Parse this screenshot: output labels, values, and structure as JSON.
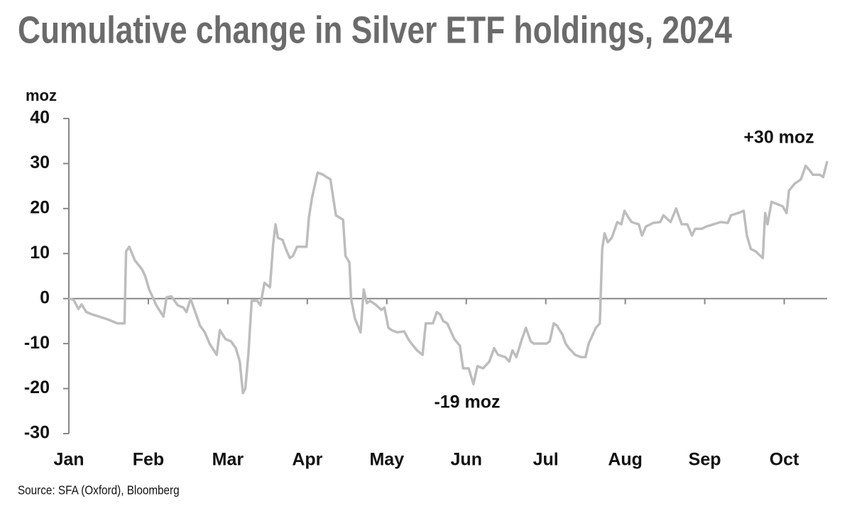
{
  "chart_data": {
    "type": "line",
    "title": "Cumulative change in Silver ETF holdings, 2024",
    "y_label": "moz",
    "source": "Source: SFA (Oxford), Bloomberg",
    "annotations": [
      "+30 moz",
      "-19 moz"
    ],
    "xlim": [
      0,
      9.54
    ],
    "xticks": [
      {
        "value": 0,
        "label": "Jan"
      },
      {
        "value": 1,
        "label": "Feb"
      },
      {
        "value": 2,
        "label": "Mar"
      },
      {
        "value": 3,
        "label": "Apr"
      },
      {
        "value": 4,
        "label": "May"
      },
      {
        "value": 5,
        "label": "Jun"
      },
      {
        "value": 6,
        "label": "Jul"
      },
      {
        "value": 7,
        "label": "Aug"
      },
      {
        "value": 8,
        "label": "Sep"
      },
      {
        "value": 9,
        "label": "Oct"
      }
    ],
    "ylim": [
      -30,
      40
    ],
    "yticks": [
      -30,
      -20,
      -10,
      0,
      10,
      20,
      30,
      40
    ],
    "x": [
      0,
      0.06,
      0.12,
      0.16,
      0.22,
      0.29,
      0.38,
      0.47,
      0.54,
      0.61,
      0.7,
      0.72,
      0.76,
      0.83,
      0.92,
      0.96,
      1.01,
      1.05,
      1.1,
      1.19,
      1.23,
      1.29,
      1.37,
      1.44,
      1.48,
      1.53,
      1.59,
      1.65,
      1.71,
      1.77,
      1.86,
      1.9,
      1.97,
      2.04,
      2.1,
      2.15,
      2.19,
      2.22,
      2.26,
      2.3,
      2.37,
      2.41,
      2.46,
      2.53,
      2.57,
      2.6,
      2.63,
      2.69,
      2.73,
      2.78,
      2.82,
      2.87,
      2.93,
      2.99,
      3.02,
      3.06,
      3.13,
      3.2,
      3.24,
      3.29,
      3.36,
      3.45,
      3.48,
      3.53,
      3.55,
      3.6,
      3.67,
      3.71,
      3.75,
      3.79,
      3.87,
      3.93,
      3.97,
      4.02,
      4.06,
      4.13,
      4.22,
      4.27,
      4.31,
      4.38,
      4.45,
      4.49,
      4.58,
      4.63,
      4.67,
      4.71,
      4.76,
      4.85,
      4.92,
      4.96,
      5.03,
      5.09,
      5.14,
      5.21,
      5.29,
      5.35,
      5.4,
      5.49,
      5.54,
      5.58,
      5.63,
      5.7,
      5.75,
      5.81,
      5.85,
      5.92,
      6.01,
      6.05,
      6.1,
      6.14,
      6.21,
      6.25,
      6.29,
      6.37,
      6.44,
      6.5,
      6.54,
      6.63,
      6.68,
      6.71,
      6.74,
      6.78,
      6.83,
      6.9,
      6.95,
      6.99,
      7.04,
      7.08,
      7.17,
      7.21,
      7.26,
      7.35,
      7.44,
      7.48,
      7.57,
      7.64,
      7.71,
      7.78,
      7.84,
      7.88,
      7.96,
      8.02,
      8.11,
      8.2,
      8.29,
      8.33,
      8.42,
      8.49,
      8.53,
      8.58,
      8.64,
      8.73,
      8.76,
      8.79,
      8.84,
      8.91,
      8.98,
      9.03,
      9.06,
      9.13,
      9.21,
      9.27,
      9.32,
      9.36,
      9.45,
      9.49,
      9.54
    ],
    "series": [
      {
        "name": "Silver ETF holdings",
        "color": "#bdbdbd",
        "values": [
          0,
          -0.3,
          -2.3,
          -1.3,
          -3,
          -3.5,
          -4,
          -4.5,
          -5,
          -5.5,
          -5.5,
          10.5,
          11.5,
          8.5,
          6.5,
          5,
          2,
          0.5,
          -1.5,
          -4,
          0.3,
          0.5,
          -1.5,
          -2,
          -3,
          0,
          -3,
          -6,
          -7.5,
          -10,
          -12.5,
          -7,
          -9,
          -9.5,
          -11,
          -14,
          -21,
          -20,
          -12,
          -0.5,
          -0.5,
          -1.5,
          3.5,
          2.5,
          12,
          16.5,
          13.5,
          13,
          11,
          9,
          9.5,
          11.5,
          11.5,
          11.5,
          18,
          22.5,
          28,
          27.5,
          27,
          26.5,
          18.5,
          17.5,
          9.5,
          8,
          0,
          -4.5,
          -7.5,
          2,
          -1,
          -0.5,
          -1.5,
          -2.5,
          -2,
          -6.5,
          -7,
          -7.5,
          -7.3,
          -9,
          -10,
          -11.5,
          -12.5,
          -5.5,
          -5.5,
          -3,
          -3.5,
          -5,
          -5.5,
          -9,
          -10.5,
          -15.5,
          -15.5,
          -19,
          -15,
          -15.5,
          -14,
          -11,
          -12.5,
          -13,
          -14,
          -11.5,
          -13,
          -9,
          -6.5,
          -9.5,
          -10,
          -10,
          -10,
          -9.5,
          -5.5,
          -6,
          -8,
          -10,
          -11,
          -12.5,
          -13,
          -13,
          -10,
          -6.5,
          -5.5,
          11,
          14.5,
          12.5,
          13.5,
          17,
          16.5,
          19.5,
          18,
          17,
          16.5,
          14,
          16,
          16.8,
          17,
          18.5,
          17,
          20,
          16.5,
          16.5,
          14,
          15.5,
          15.5,
          16,
          16.5,
          17,
          16.8,
          18.5,
          19,
          19.5,
          14,
          11,
          10.5,
          9,
          19,
          16.5,
          21.5,
          21,
          20.5,
          19,
          24,
          25.5,
          26.5,
          29.5,
          28.5,
          27.5,
          27.5,
          27,
          30.5
        ]
      }
    ]
  }
}
